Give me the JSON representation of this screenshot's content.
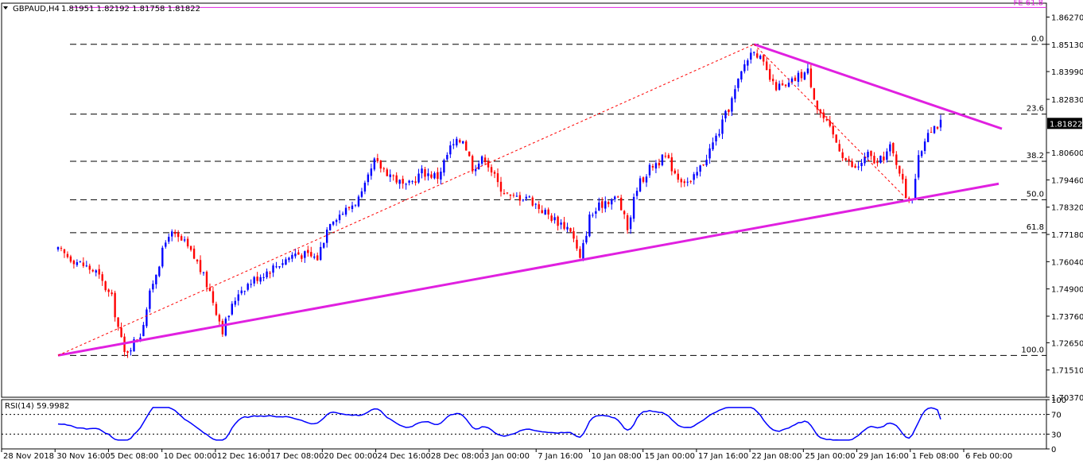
{
  "chart_data": [
    {
      "type": "candlestick",
      "title": "GBPAUD,H4",
      "ohlc_label": "1.81951 1.82192 1.81758 1.81822",
      "symbol": "GBPAUD",
      "timeframe": "H4",
      "current_price": "1.81822",
      "ylim": [
        1.7037,
        1.8685
      ],
      "y_ticks": [
        "1.86270",
        "1.85130",
        "1.83990",
        "1.82830",
        "1.81822",
        "1.80600",
        "1.79460",
        "1.78320",
        "1.77180",
        "1.76040",
        "1.74900",
        "1.73760",
        "1.72650",
        "1.71510",
        "1.70370"
      ],
      "x_ticks": [
        "28 Nov 2018",
        "30 Nov 16:00",
        "5 Dec 08:00",
        "10 Dec 00:00",
        "12 Dec 16:00",
        "17 Dec 08:00",
        "20 Dec 00:00",
        "24 Dec 16:00",
        "28 Dec 08:00",
        "3 Jan 00:00",
        "7 Jan 16:00",
        "10 Jan 08:00",
        "15 Jan 00:00",
        "17 Jan 16:00",
        "22 Jan 08:00",
        "25 Jan 00:00",
        "29 Jan 16:00",
        "1 Feb 08:00",
        "6 Feb 00:00"
      ],
      "fib_levels": [
        {
          "label": "0.0",
          "value": 1.8513
        },
        {
          "label": "23.6",
          "value": 1.8221
        },
        {
          "label": "38.2",
          "value": 1.8024
        },
        {
          "label": "50.0",
          "value": 1.7863
        },
        {
          "label": "61.8",
          "value": 1.7725
        },
        {
          "label": "100.0",
          "value": 1.7212
        }
      ],
      "fe_level": {
        "label": "FE 61.8",
        "value": 1.8667
      },
      "bullish_color": "#0000ff",
      "bearish_color": "#ff0000",
      "trendline_color": "#e020e0",
      "close_path": [
        {
          "x": 0,
          "y": 1.765
        },
        {
          "x": 6,
          "y": 1.7605
        },
        {
          "x": 12,
          "y": 1.756
        },
        {
          "x": 17,
          "y": 1.745
        },
        {
          "x": 19,
          "y": 1.733
        },
        {
          "x": 21,
          "y": 1.722
        },
        {
          "x": 26,
          "y": 1.73
        },
        {
          "x": 30,
          "y": 1.752
        },
        {
          "x": 35,
          "y": 1.7725
        },
        {
          "x": 40,
          "y": 1.768
        },
        {
          "x": 44,
          "y": 1.76
        },
        {
          "x": 48,
          "y": 1.748
        },
        {
          "x": 52,
          "y": 1.732
        },
        {
          "x": 57,
          "y": 1.748
        },
        {
          "x": 63,
          "y": 1.754
        },
        {
          "x": 68,
          "y": 1.758
        },
        {
          "x": 75,
          "y": 1.764
        },
        {
          "x": 82,
          "y": 1.762
        },
        {
          "x": 86,
          "y": 1.778
        },
        {
          "x": 91,
          "y": 1.782
        },
        {
          "x": 96,
          "y": 1.788
        },
        {
          "x": 100,
          "y": 1.802
        },
        {
          "x": 106,
          "y": 1.796
        },
        {
          "x": 110,
          "y": 1.791
        },
        {
          "x": 115,
          "y": 1.798
        },
        {
          "x": 120,
          "y": 1.796
        },
        {
          "x": 124,
          "y": 1.808
        },
        {
          "x": 128,
          "y": 1.812
        },
        {
          "x": 131,
          "y": 1.8
        },
        {
          "x": 135,
          "y": 1.804
        },
        {
          "x": 139,
          "y": 1.793
        },
        {
          "x": 143,
          "y": 1.787
        },
        {
          "x": 148,
          "y": 1.788
        },
        {
          "x": 153,
          "y": 1.782
        },
        {
          "x": 157,
          "y": 1.778
        },
        {
          "x": 162,
          "y": 1.774
        },
        {
          "x": 165,
          "y": 1.761
        },
        {
          "x": 168,
          "y": 1.779
        },
        {
          "x": 173,
          "y": 1.786
        },
        {
          "x": 177,
          "y": 1.787
        },
        {
          "x": 180,
          "y": 1.774
        },
        {
          "x": 183,
          "y": 1.792
        },
        {
          "x": 188,
          "y": 1.801
        },
        {
          "x": 192,
          "y": 1.804
        },
        {
          "x": 196,
          "y": 1.796
        },
        {
          "x": 200,
          "y": 1.793
        },
        {
          "x": 204,
          "y": 1.802
        },
        {
          "x": 209,
          "y": 1.815
        },
        {
          "x": 213,
          "y": 1.828
        },
        {
          "x": 217,
          "y": 1.843
        },
        {
          "x": 220,
          "y": 1.85
        },
        {
          "x": 222,
          "y": 1.845
        },
        {
          "x": 226,
          "y": 1.834
        },
        {
          "x": 230,
          "y": 1.833
        },
        {
          "x": 234,
          "y": 1.838
        },
        {
          "x": 237,
          "y": 1.84
        },
        {
          "x": 240,
          "y": 1.825
        },
        {
          "x": 245,
          "y": 1.813
        },
        {
          "x": 249,
          "y": 1.803
        },
        {
          "x": 252,
          "y": 1.799
        },
        {
          "x": 256,
          "y": 1.805
        },
        {
          "x": 259,
          "y": 1.801
        },
        {
          "x": 263,
          "y": 1.808
        },
        {
          "x": 266,
          "y": 1.799
        },
        {
          "x": 268,
          "y": 1.788
        },
        {
          "x": 270,
          "y": 1.788
        },
        {
          "x": 272,
          "y": 1.803
        },
        {
          "x": 275,
          "y": 1.816
        },
        {
          "x": 279,
          "y": 1.8182
        }
      ],
      "rsi": {
        "label": "RSI(14) 59.9982",
        "period": 14,
        "value": 59.9982,
        "levels": [
          70,
          30
        ],
        "y_ticks": [
          "100",
          "70",
          "30",
          "0"
        ],
        "color": "#0000ff"
      }
    }
  ]
}
